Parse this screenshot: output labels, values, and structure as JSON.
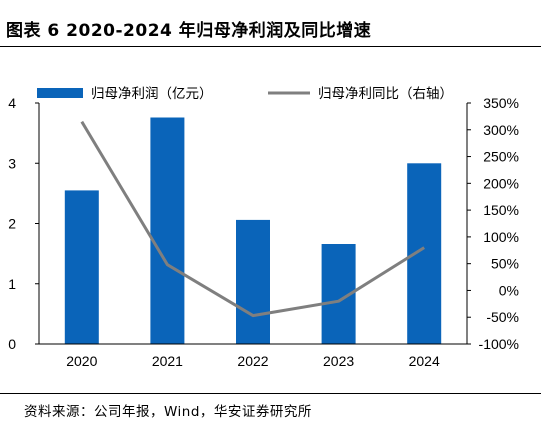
{
  "header": {
    "title": "图表 6 2020-2024 年归母净利润及同比增速"
  },
  "footer": {
    "source": "资料来源：公司年报，Wind，华安证券研究所"
  },
  "colors": {
    "bar": "#0a64b9",
    "line": "#7f7f7f",
    "axis": "#000000"
  },
  "chart_data": {
    "type": "bar",
    "title": "",
    "categories": [
      "2020",
      "2021",
      "2022",
      "2023",
      "2024"
    ],
    "series": [
      {
        "name": "归母净利润（亿元）",
        "type": "bar",
        "axis": "left",
        "values": [
          2.55,
          3.76,
          2.06,
          1.66,
          3.0
        ]
      },
      {
        "name": "归母净利同比（右轴）",
        "type": "line",
        "axis": "right",
        "values": [
          315,
          48,
          -47,
          -20,
          80
        ]
      }
    ],
    "y_left": {
      "min": 0,
      "max": 4,
      "ticks": [
        "0",
        "1",
        "2",
        "3",
        "4"
      ]
    },
    "y_right": {
      "min": -100,
      "max": 350,
      "ticks": [
        "-100%",
        "-50%",
        "0%",
        "50%",
        "100%",
        "150%",
        "200%",
        "250%",
        "300%",
        "350%"
      ]
    },
    "legend": "top",
    "grid": false
  }
}
